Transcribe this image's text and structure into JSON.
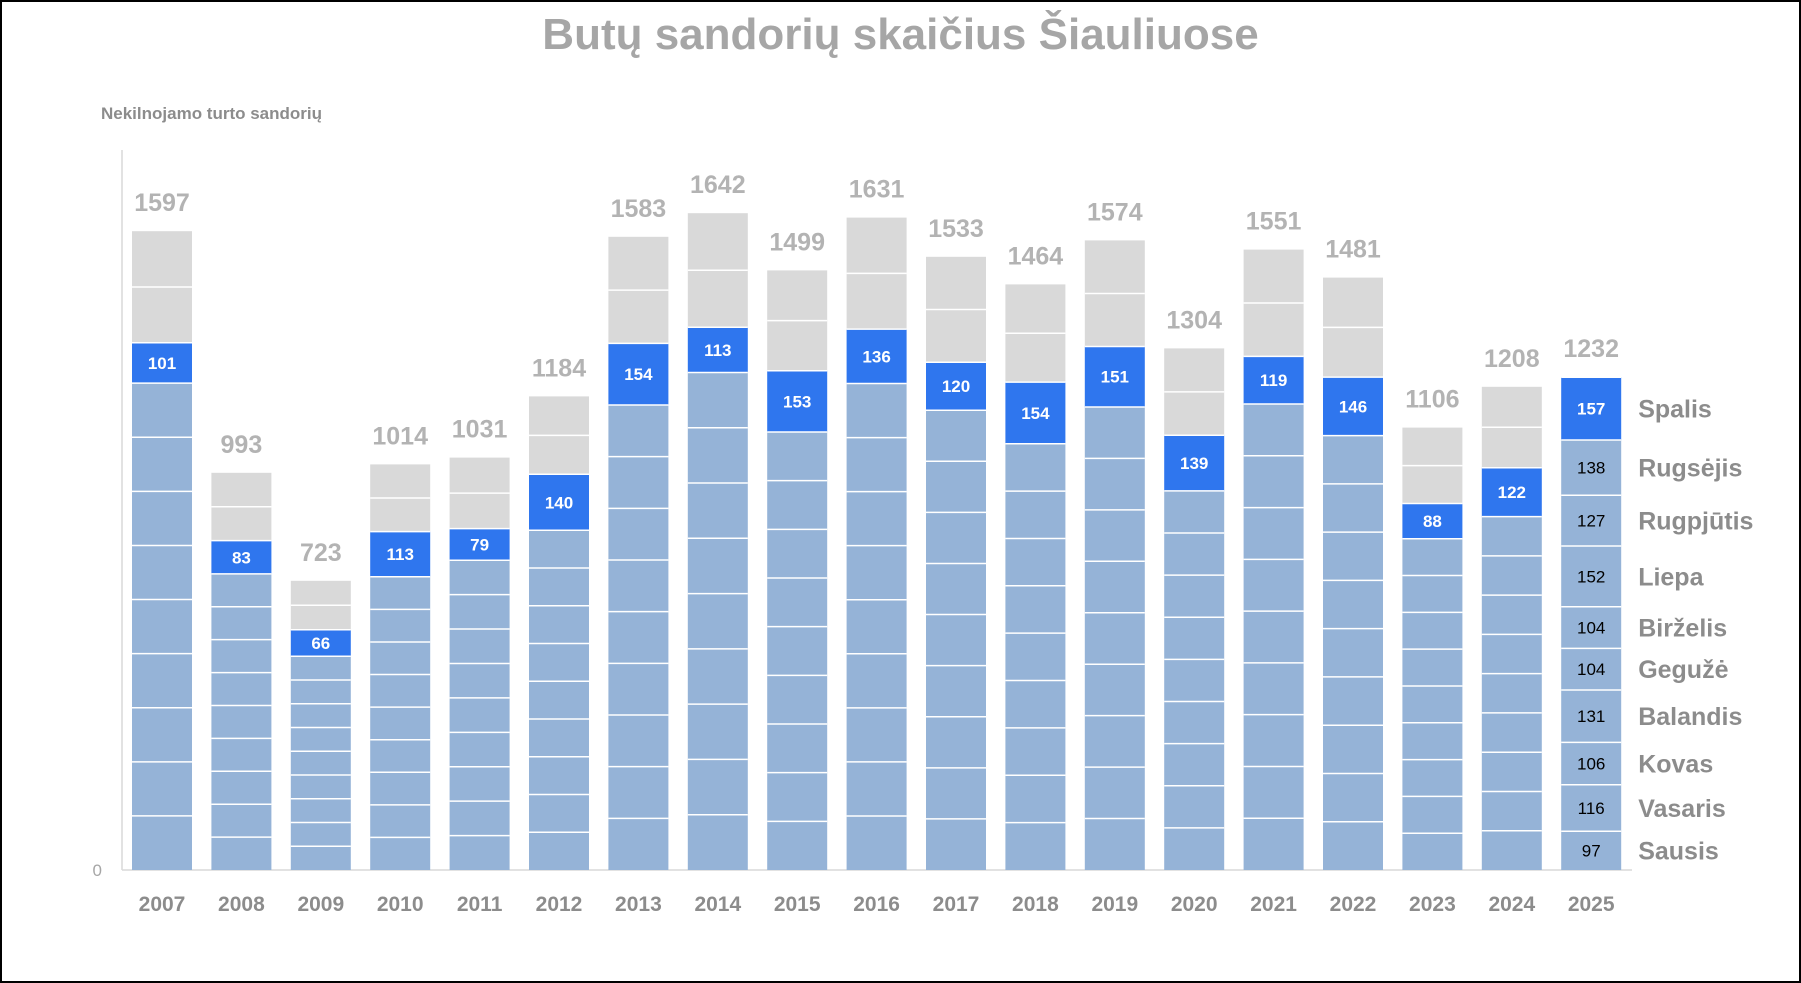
{
  "chart_data": {
    "type": "bar",
    "stacked": true,
    "title": "Butų sandorių skaičius Šiauliuose",
    "ylabel": "Nekilnojamo turto sandorių",
    "y_tick_labels": [
      "0"
    ],
    "ylim": [
      0,
      1800
    ],
    "grid": false,
    "categories": [
      "2007",
      "2008",
      "2009",
      "2010",
      "2011",
      "2012",
      "2013",
      "2014",
      "2015",
      "2016",
      "2017",
      "2018",
      "2019",
      "2020",
      "2021",
      "2022",
      "2023",
      "2024",
      "2025"
    ],
    "totals": [
      1597,
      993,
      723,
      1014,
      1031,
      1184,
      1583,
      1642,
      1499,
      1631,
      1533,
      1464,
      1574,
      1304,
      1551,
      1481,
      1106,
      1208,
      1232
    ],
    "highlight_month": "Spalis",
    "highlight_values": [
      101,
      83,
      66,
      113,
      79,
      140,
      154,
      113,
      153,
      136,
      120,
      154,
      151,
      139,
      119,
      146,
      88,
      122,
      157
    ],
    "months": [
      "Sausis",
      "Vasaris",
      "Kovas",
      "Balandis",
      "Gegužė",
      "Birželis",
      "Liepa",
      "Rugpjūtis",
      "Rugsėjis",
      "Spalis"
    ],
    "latest_year_values": [
      97,
      116,
      106,
      131,
      104,
      104,
      152,
      127,
      138,
      157
    ],
    "colors": {
      "months_before": "#95b3d7",
      "highlight": "#2f76ee",
      "months_after": "#d9d9d9",
      "separator": "#ffffff",
      "axis": "#d9d9d9"
    }
  }
}
